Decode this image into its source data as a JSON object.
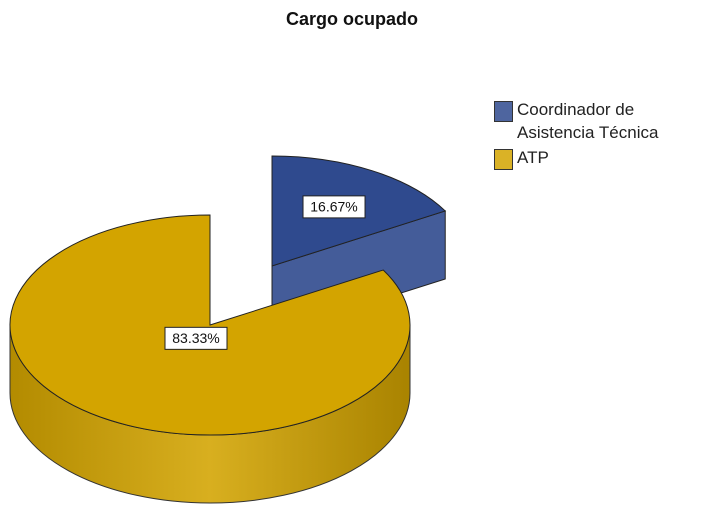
{
  "chart_data": {
    "type": "pie",
    "title": "Cargo ocupado",
    "categories": [
      "Coordinador de Asistencia Técnica",
      "ATP"
    ],
    "values": [
      16.67,
      83.33
    ],
    "value_labels": [
      "16.67%",
      "83.33%"
    ],
    "colors": [
      "#2f4a8e",
      "#d3a400"
    ],
    "explode": [
      true,
      false
    ],
    "legend": "right"
  }
}
